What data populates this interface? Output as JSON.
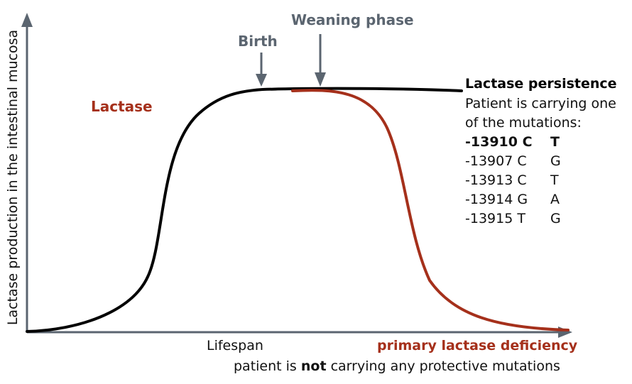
{
  "y_axis_label": "Lactase production in the intestinal mucosa",
  "x_axis_label": "Lifespan",
  "curve_label": "Lactase",
  "events": {
    "birth": "Birth",
    "weaning": "Weaning phase"
  },
  "persistence": {
    "title": "Lactase persistence",
    "line1": "Patient is carrying one",
    "line2": "of the mutations:",
    "mutations": [
      {
        "position": "-13910 C",
        "allele": "T",
        "bold": true
      },
      {
        "position": "-13907 C",
        "allele": "G",
        "bold": false
      },
      {
        "position": "-13913 C",
        "allele": "T",
        "bold": false
      },
      {
        "position": "-13914 G",
        "allele": "A",
        "bold": false
      },
      {
        "position": "-13915 T",
        "allele": "G",
        "bold": false
      }
    ]
  },
  "deficiency": {
    "title": "primary lactase deficiency",
    "sub_before": "patient is ",
    "sub_bold": "not",
    "sub_after": " carrying any protective mutations"
  },
  "colors": {
    "persistence_curve": "#000000",
    "deficiency_curve": "#a5301b",
    "axis": "#5b6570",
    "event_text": "#5b6570"
  }
}
